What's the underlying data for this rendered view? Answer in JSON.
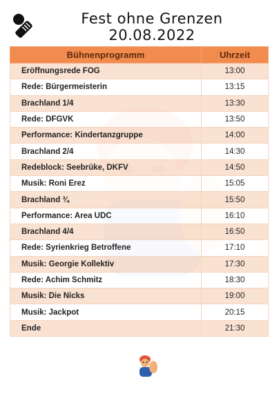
{
  "header": {
    "title": "Fest ohne Grenzen",
    "date": "20.08.2022",
    "icon": "microphone-icon"
  },
  "table": {
    "col_program": "Bühnenprogramm",
    "col_time": "Uhrzeit",
    "rows": [
      {
        "program": "Eröffnungsrede FOG",
        "time": "13:00"
      },
      {
        "program": "Rede: Bürgermeisterin",
        "time": "13:15"
      },
      {
        "program": "Brachland 1/4",
        "time": "13:30"
      },
      {
        "program": "Rede: DFGVK",
        "time": "13:50"
      },
      {
        "program": "Performance: Kindertanzgruppe",
        "time": "14:00"
      },
      {
        "program": "Brachland 2/4",
        "time": "14:30"
      },
      {
        "program": "Redeblock: Seebrüke, DKFV",
        "time": "14:50"
      },
      {
        "program": "Musik: Roni Erez",
        "time": "15:05"
      },
      {
        "program": "Brachland ¾",
        "time": "15:50"
      },
      {
        "program": "Performance: Area UDC",
        "time": "16:10"
      },
      {
        "program": "Brachland 4/4",
        "time": "16:50"
      },
      {
        "program": "Rede: Syrienkrieg Betroffene",
        "time": "17:10"
      },
      {
        "program": "Musik: Georgie Kollektiv",
        "time": "17:30"
      },
      {
        "program": "Rede: Achim Schmitz",
        "time": "18:30"
      },
      {
        "program": "Musik: Die Nicks",
        "time": "19:00"
      },
      {
        "program": "Musik: Jackpot",
        "time": "20:15"
      },
      {
        "program": "Ende",
        "time": "21:30"
      }
    ]
  },
  "colors": {
    "header_orange": "#f28c4e",
    "row_tint": "#f9ddcb"
  }
}
